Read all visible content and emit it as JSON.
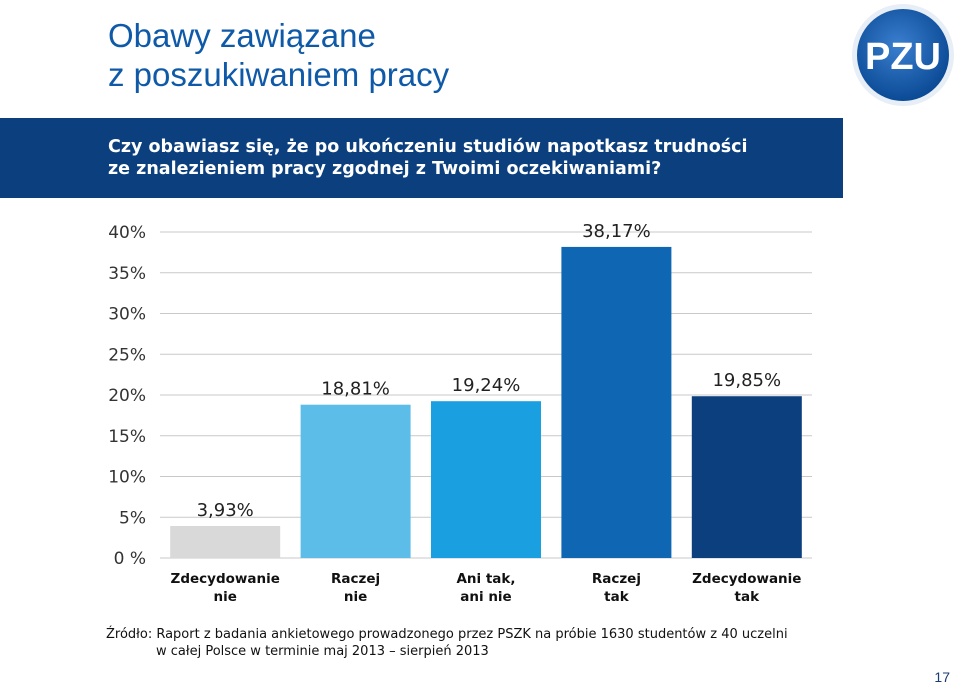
{
  "title_lines": [
    "Obawy zawiązane",
    "z poszukiwaniem pracy"
  ],
  "logo_text": "PZU",
  "question_lines": [
    "Czy obawiasz się, że po ukończeniu studiów napotkasz trudności",
    "ze znalezieniem pracy zgodnej z Twoimi oczekiwaniami?"
  ],
  "chart_data": {
    "type": "bar",
    "categories": [
      [
        "Zdecydowanie",
        "nie"
      ],
      [
        "Raczej",
        "nie"
      ],
      [
        "Ani tak,",
        "ani nie"
      ],
      [
        "Raczej",
        "tak"
      ],
      [
        "Zdecydowanie",
        "tak"
      ]
    ],
    "values": [
      3.93,
      18.81,
      19.24,
      38.17,
      19.85
    ],
    "value_labels": [
      "3,93%",
      "18,81%",
      "19,24%",
      "38,17%",
      "19,85%"
    ],
    "colors": [
      "#d9d9d9",
      "#5dbde9",
      "#1aa0e0",
      "#0f66b3",
      "#0b3f7e"
    ],
    "ylim": [
      0,
      40
    ],
    "yticks": [
      0,
      5,
      10,
      15,
      20,
      25,
      30,
      35,
      40
    ],
    "ytick_labels": [
      "0 %",
      "5%",
      "10%",
      "15%",
      "20%",
      "25%",
      "30%",
      "35%",
      "40%"
    ],
    "grid": true,
    "legend": "none"
  },
  "source_lines": [
    "Źródło: Raport z badania ankietowego prowadzonego przez PSZK na próbie 1630 studentów z 40 uczelni",
    "w całej Polsce w terminie maj 2013 – sierpień 2013"
  ],
  "page_number": "17"
}
